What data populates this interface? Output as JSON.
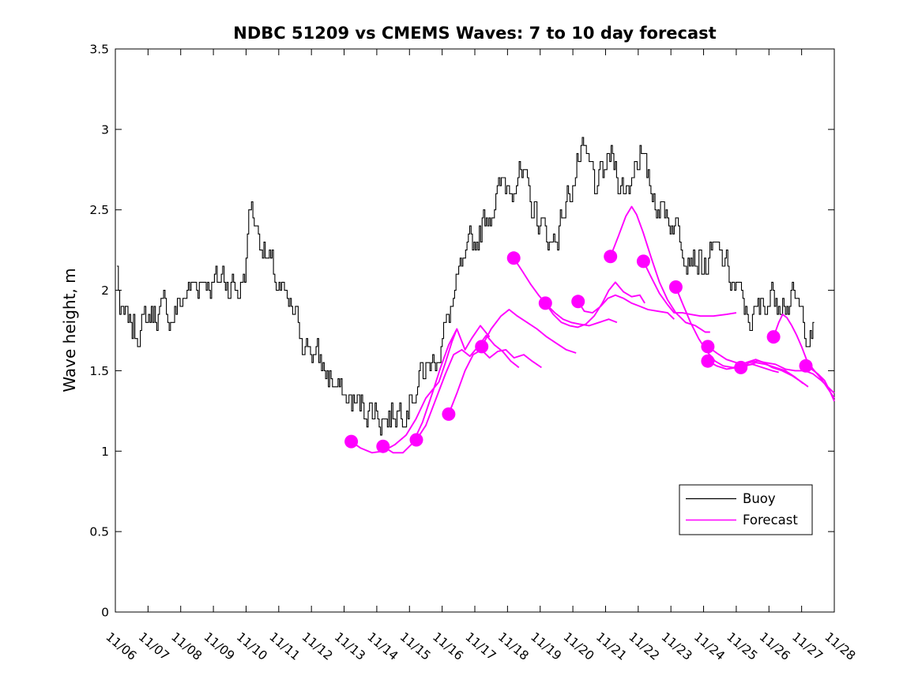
{
  "title": "NDBC 51209 vs CMEMS Waves: 7 to 10 day forecast",
  "ylabel": "Wave height, m",
  "legend": {
    "items": [
      {
        "label": "Buoy",
        "color": "#000000"
      },
      {
        "label": "Forecast",
        "color": "#ff00ff"
      }
    ]
  },
  "colors": {
    "buoy": "#000000",
    "forecast": "#ff00ff",
    "background": "#ffffff",
    "axis": "#000000"
  },
  "chart_data": {
    "type": "line",
    "title": "NDBC 51209 vs CMEMS Waves: 7 to 10 day forecast",
    "xlabel": "",
    "ylabel": "Wave height, m",
    "x_unit": "days since 11/06",
    "x_tick_labels": [
      "11/06",
      "11/07",
      "11/08",
      "11/09",
      "11/10",
      "11/11",
      "11/12",
      "11/13",
      "11/14",
      "11/15",
      "11/16",
      "11/17",
      "11/18",
      "11/19",
      "11/20",
      "11/21",
      "11/22",
      "11/23",
      "11/24",
      "11/25",
      "11/26",
      "11/27",
      "11/28"
    ],
    "x_tick_label_rotation_deg": 40,
    "y_ticks": [
      0,
      0.5,
      1,
      1.5,
      2,
      2.5,
      3,
      3.5
    ],
    "ylim": [
      0,
      3.5
    ],
    "xlim_days": [
      0,
      22
    ],
    "grid": false,
    "legend_position": "inside lower right",
    "series": [
      {
        "name": "Buoy",
        "style": "noisy-step",
        "color": "#000000",
        "line_width": 1.1,
        "noise_amplitude": 0.09,
        "quantize": 0.05,
        "x": [
          0.05,
          0.15,
          0.3,
          0.5,
          0.7,
          0.9,
          1.1,
          1.3,
          1.5,
          1.7,
          1.9,
          2.1,
          2.3,
          2.5,
          2.7,
          2.9,
          3.1,
          3.3,
          3.5,
          3.7,
          3.9,
          4.0,
          4.1,
          4.25,
          4.4,
          4.6,
          4.8,
          5.0,
          5.2,
          5.4,
          5.6,
          5.8,
          6.0,
          6.2,
          6.4,
          6.6,
          6.8,
          7.0,
          7.2,
          7.45,
          7.7,
          7.95,
          8.2,
          8.45,
          8.7,
          8.95,
          9.15,
          9.35,
          9.55,
          9.75,
          9.95,
          10.15,
          10.35,
          10.55,
          10.75,
          10.95,
          11.15,
          11.35,
          11.55,
          11.75,
          11.95,
          12.15,
          12.35,
          12.55,
          12.75,
          12.95,
          13.15,
          13.35,
          13.55,
          13.75,
          13.95,
          14.15,
          14.35,
          14.55,
          14.75,
          14.95,
          15.15,
          15.35,
          15.55,
          15.75,
          15.95,
          16.05,
          16.2,
          16.4,
          16.6,
          16.8,
          17.0,
          17.2,
          17.4,
          17.6,
          17.8,
          18.0,
          18.2,
          18.4,
          18.6,
          18.8,
          19.0,
          19.2,
          19.4,
          19.6,
          19.8,
          20.0,
          20.2,
          20.4,
          20.6,
          20.8,
          21.0,
          21.2,
          21.4
        ],
        "y": [
          2.15,
          1.82,
          1.8,
          1.78,
          1.76,
          1.8,
          1.84,
          1.88,
          1.86,
          1.84,
          1.88,
          1.96,
          2.02,
          2.06,
          2.1,
          2.06,
          2.04,
          2.1,
          2.06,
          2.0,
          2.06,
          2.18,
          2.55,
          2.45,
          2.35,
          2.22,
          2.1,
          2.0,
          1.92,
          1.84,
          1.77,
          1.7,
          1.64,
          1.56,
          1.49,
          1.44,
          1.39,
          1.34,
          1.31,
          1.29,
          1.27,
          1.25,
          1.21,
          1.23,
          1.27,
          1.33,
          1.4,
          1.46,
          1.52,
          1.58,
          1.66,
          1.8,
          1.95,
          2.08,
          2.18,
          2.28,
          2.38,
          2.48,
          2.55,
          2.62,
          2.66,
          2.7,
          2.74,
          2.62,
          2.52,
          2.44,
          2.36,
          2.28,
          2.38,
          2.52,
          2.66,
          2.78,
          2.82,
          2.72,
          2.62,
          2.74,
          2.82,
          2.76,
          2.62,
          2.68,
          2.85,
          2.92,
          2.72,
          2.62,
          2.56,
          2.5,
          2.44,
          2.38,
          2.3,
          2.26,
          2.22,
          2.14,
          2.18,
          2.24,
          2.18,
          2.08,
          2.0,
          1.9,
          1.83,
          1.83,
          1.9,
          1.97,
          2.0,
          1.97,
          1.94,
          1.9,
          1.84,
          1.76,
          1.7
        ]
      },
      {
        "name": "Forecast",
        "style": "line-with-start-dot",
        "color": "#ff00ff",
        "line_width": 1.9,
        "marker": "filled-circle-at-start",
        "marker_radius": 8.5,
        "runs": [
          {
            "x": [
              7.22,
              7.5,
              7.85,
              8.2,
              8.55,
              8.9,
              9.2,
              9.5,
              9.7,
              9.9,
              10.1,
              10.3,
              10.45
            ],
            "y": [
              1.06,
              1.02,
              0.99,
              1.0,
              1.04,
              1.1,
              1.2,
              1.33,
              1.38,
              1.43,
              1.55,
              1.68,
              1.76
            ]
          },
          {
            "x": [
              8.19,
              8.5,
              8.8,
              9.1,
              9.4,
              9.7,
              9.95,
              10.2,
              10.45,
              10.7,
              10.9,
              11.17,
              11.45
            ],
            "y": [
              1.03,
              0.99,
              0.99,
              1.05,
              1.18,
              1.36,
              1.52,
              1.66,
              1.76,
              1.63,
              1.7,
              1.78,
              1.71
            ]
          },
          {
            "x": [
              9.21,
              9.5,
              9.8,
              10.1,
              10.35,
              10.6,
              10.85,
              11.1,
              11.35,
              11.6,
              11.85,
              12.1,
              12.35
            ],
            "y": [
              1.07,
              1.16,
              1.32,
              1.48,
              1.6,
              1.63,
              1.59,
              1.65,
              1.72,
              1.66,
              1.62,
              1.56,
              1.52
            ]
          },
          {
            "x": [
              10.2,
              10.45,
              10.7,
              10.95,
              11.2,
              11.45,
              11.7,
              11.95,
              12.2,
              12.5,
              12.75,
              13.04
            ],
            "y": [
              1.23,
              1.36,
              1.5,
              1.6,
              1.63,
              1.58,
              1.62,
              1.63,
              1.58,
              1.6,
              1.56,
              1.52
            ]
          },
          {
            "x": [
              11.21,
              11.5,
              11.8,
              12.05,
              12.3,
              12.6,
              12.9,
              13.2,
              13.5,
              13.8,
              14.1
            ],
            "y": [
              1.65,
              1.76,
              1.84,
              1.88,
              1.84,
              1.8,
              1.76,
              1.71,
              1.67,
              1.63,
              1.61
            ]
          },
          {
            "x": [
              12.19,
              12.45,
              12.7,
              12.95,
              13.2,
              13.45,
              13.7,
              13.95,
              14.2,
              14.5,
              14.8,
              15.1,
              15.35
            ],
            "y": [
              2.2,
              2.12,
              2.04,
              1.97,
              1.91,
              1.86,
              1.82,
              1.8,
              1.79,
              1.78,
              1.8,
              1.82,
              1.8
            ]
          },
          {
            "x": [
              13.16,
              13.4,
              13.65,
              13.9,
              14.15,
              14.4,
              14.65,
              14.9,
              15.1,
              15.3,
              15.55,
              15.8,
              16.05,
              16.2
            ],
            "y": [
              1.92,
              1.85,
              1.8,
              1.78,
              1.77,
              1.79,
              1.84,
              1.92,
              2.0,
              2.05,
              1.99,
              1.96,
              1.97,
              1.92
            ]
          },
          {
            "x": [
              14.16,
              14.35,
              14.6,
              14.85,
              15.07,
              15.3,
              15.55,
              15.8,
              16.05,
              16.3,
              16.6,
              16.9,
              17.1
            ],
            "y": [
              1.93,
              1.87,
              1.86,
              1.9,
              1.95,
              1.97,
              1.95,
              1.92,
              1.9,
              1.88,
              1.87,
              1.86,
              1.82
            ]
          },
          {
            "x": [
              15.15,
              15.4,
              15.62,
              15.8,
              15.95,
              16.15,
              16.4,
              16.65,
              16.9,
              17.15,
              17.45,
              17.75,
              18.05,
              18.2
            ],
            "y": [
              2.21,
              2.34,
              2.46,
              2.52,
              2.47,
              2.36,
              2.2,
              2.05,
              1.94,
              1.86,
              1.8,
              1.78,
              1.74,
              1.74
            ]
          },
          {
            "x": [
              16.16,
              16.4,
              16.65,
              16.9,
              17.1,
              17.35,
              17.6,
              17.9,
              18.3,
              18.7,
              19.0
            ],
            "y": [
              2.18,
              2.08,
              1.98,
              1.91,
              1.86,
              1.86,
              1.85,
              1.84,
              1.84,
              1.85,
              1.86
            ]
          },
          {
            "x": [
              17.15,
              17.35,
              17.6,
              17.85,
              18.1,
              18.35,
              18.6,
              18.9,
              19.2,
              19.5,
              19.8,
              20.1,
              20.3
            ],
            "y": [
              2.02,
              1.92,
              1.8,
              1.7,
              1.62,
              1.56,
              1.53,
              1.52,
              1.53,
              1.54,
              1.52,
              1.5,
              1.49
            ]
          },
          {
            "x": [
              18.13,
              18.4,
              18.7,
              19.0,
              19.3,
              19.6,
              19.9,
              20.2,
              20.5,
              20.8,
              21.05
            ],
            "y": [
              1.65,
              1.61,
              1.57,
              1.55,
              1.53,
              1.55,
              1.54,
              1.52,
              1.5,
              1.46,
              1.42
            ]
          },
          {
            "x": [
              18.13,
              18.4,
              18.7,
              19.0,
              19.3,
              19.6,
              19.85,
              20.1,
              20.4,
              20.7,
              21.0,
              21.2
            ],
            "y": [
              1.56,
              1.53,
              1.51,
              1.52,
              1.55,
              1.57,
              1.55,
              1.52,
              1.5,
              1.47,
              1.43,
              1.4
            ]
          },
          {
            "x": [
              19.14,
              19.4,
              19.65,
              19.9,
              20.2,
              20.5,
              20.8,
              21.1,
              21.35,
              21.6,
              21.8,
              22.0
            ],
            "y": [
              1.52,
              1.55,
              1.56,
              1.55,
              1.54,
              1.51,
              1.5,
              1.5,
              1.48,
              1.44,
              1.4,
              1.36
            ]
          },
          {
            "x": [
              20.14,
              20.3,
              20.42,
              20.55,
              20.7,
              20.85,
              21.0,
              21.15,
              21.35,
              21.6,
              21.8,
              22.0
            ],
            "y": [
              1.71,
              1.8,
              1.85,
              1.83,
              1.78,
              1.72,
              1.65,
              1.57,
              1.51,
              1.45,
              1.39,
              1.33
            ]
          },
          {
            "x": [
              21.13,
              21.3,
              21.5,
              21.7,
              21.85,
              22.0
            ],
            "y": [
              1.53,
              1.51,
              1.48,
              1.44,
              1.38,
              1.31
            ]
          }
        ],
        "start_points": [
          [
            7.22,
            1.06
          ],
          [
            8.19,
            1.03
          ],
          [
            9.21,
            1.07
          ],
          [
            10.2,
            1.23
          ],
          [
            11.21,
            1.65
          ],
          [
            12.19,
            2.2
          ],
          [
            13.16,
            1.92
          ],
          [
            14.16,
            1.93
          ],
          [
            15.15,
            2.21
          ],
          [
            16.16,
            2.18
          ],
          [
            17.15,
            2.02
          ],
          [
            18.13,
            1.65
          ],
          [
            18.13,
            1.56
          ],
          [
            19.14,
            1.52
          ],
          [
            20.14,
            1.71
          ],
          [
            21.13,
            1.53
          ]
        ]
      }
    ]
  }
}
